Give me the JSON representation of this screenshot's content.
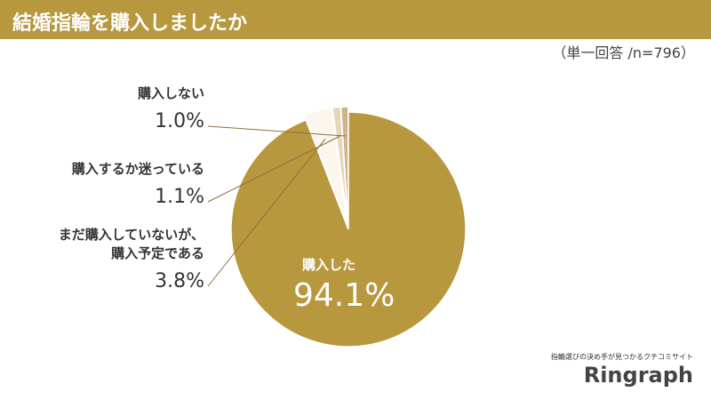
{
  "chart_data": {
    "type": "pie",
    "title": "結婚指輪を購入しましたか",
    "subtitle": "（単一回答 /n=796）",
    "categories": [
      "購入した",
      "まだ購入していないが、\n購入予定である",
      "購入するか迷っている",
      "購入しない"
    ],
    "values": [
      94.1,
      3.8,
      1.1,
      1.0
    ],
    "value_labels": [
      "94.1%",
      "3.8%",
      "1.1%",
      "1.0%"
    ],
    "colors": [
      "#b8983f",
      "#fbf7ee",
      "#e6d6b8",
      "#ceb48a"
    ]
  },
  "logo": {
    "tagline": "指輪選びの決め手が見つかるクチコミサイト",
    "name": "Ringraph"
  }
}
